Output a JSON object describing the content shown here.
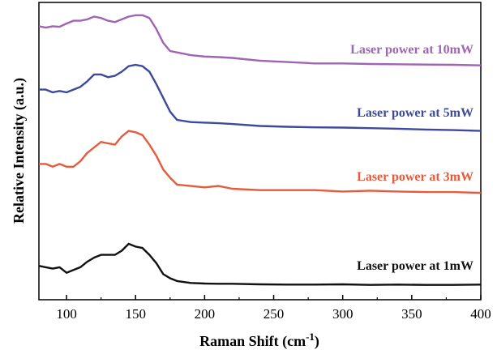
{
  "chart_data": {
    "type": "line",
    "xlabel": "Raman Shift (cm",
    "xlabel_sup": "-1",
    "xlabel_tail": ")",
    "ylabel": "Relative Intensity (a.u.)",
    "xlim": [
      80,
      400
    ],
    "ylim": [
      0,
      100
    ],
    "xticks": [
      "100",
      "150",
      "200",
      "250",
      "300",
      "350",
      "400"
    ],
    "y_tick_labels": false,
    "grid": false,
    "series": [
      {
        "name": "Laser power at 10mW",
        "color": "#a064b4",
        "x": [
          80,
          85,
          90,
          95,
          100,
          105,
          110,
          115,
          120,
          125,
          130,
          135,
          140,
          145,
          150,
          155,
          160,
          165,
          170,
          175,
          180,
          190,
          200,
          210,
          220,
          240,
          260,
          280,
          300,
          320,
          340,
          360,
          380,
          400
        ],
        "y": [
          94,
          93.5,
          94,
          93.8,
          95,
          96,
          96,
          96.5,
          97.5,
          97,
          96,
          95.5,
          96.5,
          97.5,
          98,
          98,
          97,
          93,
          88,
          85,
          84.5,
          83.5,
          83,
          82.8,
          82.5,
          81.5,
          81,
          80.5,
          80.5,
          80.3,
          80.2,
          80.1,
          80,
          79.8
        ]
      },
      {
        "name": "Laser power at 5mW",
        "color": "#3c4a9c",
        "x": [
          80,
          85,
          90,
          95,
          100,
          105,
          110,
          115,
          120,
          125,
          130,
          135,
          140,
          145,
          150,
          155,
          160,
          165,
          170,
          175,
          180,
          190,
          200,
          210,
          220,
          240,
          260,
          280,
          300,
          320,
          340,
          360,
          380,
          400
        ],
        "y": [
          71,
          71,
          70,
          70.5,
          70,
          71,
          72,
          74,
          76.5,
          76.5,
          75.5,
          76,
          77.5,
          79.5,
          80,
          79.5,
          77.5,
          73,
          68,
          63,
          60,
          59.2,
          59,
          58.8,
          58.5,
          57.8,
          57.5,
          57.3,
          57.2,
          57,
          56.8,
          56.5,
          56.3,
          56
        ]
      },
      {
        "name": "Laser power at 3mW",
        "color": "#e85a3c",
        "x": [
          80,
          85,
          90,
          95,
          100,
          105,
          110,
          115,
          120,
          125,
          130,
          135,
          140,
          145,
          150,
          155,
          160,
          165,
          170,
          175,
          180,
          190,
          200,
          210,
          220,
          240,
          260,
          280,
          300,
          320,
          340,
          360,
          380,
          400
        ],
        "y": [
          44,
          44,
          43,
          44,
          43,
          43,
          45,
          48,
          50,
          52,
          51.5,
          51,
          54,
          56,
          55.5,
          54.5,
          51,
          47,
          42,
          39,
          36.5,
          36,
          35.5,
          36,
          35,
          34.5,
          34.5,
          34.5,
          34,
          34.3,
          34,
          33.8,
          33.8,
          33.5
        ]
      },
      {
        "name": "Laser power at 1mW",
        "color": "#111111",
        "x": [
          80,
          85,
          90,
          95,
          100,
          105,
          110,
          115,
          120,
          125,
          130,
          135,
          140,
          145,
          150,
          155,
          160,
          165,
          170,
          175,
          180,
          190,
          200,
          210,
          220,
          240,
          260,
          280,
          300,
          320,
          340,
          360,
          380,
          400
        ],
        "y": [
          7,
          6.5,
          6,
          6.5,
          4.5,
          5.5,
          6.5,
          8.5,
          10,
          11,
          11,
          11,
          12.5,
          15,
          14,
          13.5,
          11,
          8,
          4,
          2.5,
          1.5,
          0.8,
          0.6,
          0.5,
          0.5,
          0.3,
          0.2,
          0.2,
          0.3,
          0.1,
          0.2,
          0.1,
          0.1,
          0.2
        ]
      }
    ]
  }
}
